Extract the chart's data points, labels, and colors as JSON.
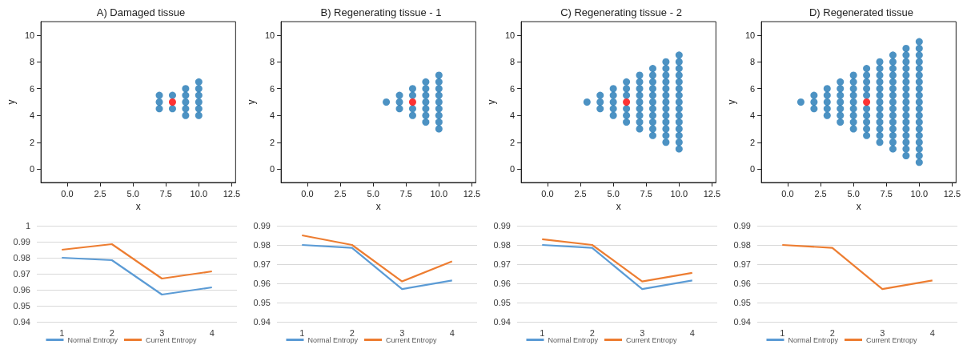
{
  "chart_data": [
    {
      "type": "scatter",
      "title": "A) Damaged tissue",
      "xlabel": "x",
      "ylabel": "y",
      "marker": "circle",
      "xlim": [
        -2,
        12.8
      ],
      "ylim": [
        -1,
        11
      ],
      "xticks": [
        {
          "value": 0,
          "label": "0.0"
        },
        2.5,
        {
          "value": 5,
          "label": "5.0"
        },
        7.5,
        {
          "value": 10,
          "label": "10.0"
        },
        12.5
      ],
      "yticks": [
        0,
        2,
        4,
        6,
        8,
        10
      ],
      "series": [
        {
          "color": "#1f77b4",
          "x": [
            7,
            7,
            7,
            8,
            8,
            9,
            9,
            9,
            9,
            9,
            10,
            10,
            10,
            10,
            10,
            10
          ],
          "values": [
            4.5,
            5,
            5.5,
            4.5,
            5.5,
            4,
            4.5,
            5,
            5.5,
            6,
            4,
            4.5,
            5,
            5.5,
            6,
            6.5
          ]
        },
        {
          "color": "#ff0000",
          "x": [
            8
          ],
          "values": [
            5
          ]
        }
      ]
    },
    {
      "type": "scatter",
      "title": "B) Regenerating tissue - 1",
      "xlabel": "x",
      "ylabel": "y",
      "marker": "circle",
      "xlim": [
        -2,
        12.8
      ],
      "ylim": [
        -1,
        11
      ],
      "xticks": [
        {
          "value": 0,
          "label": "0.0"
        },
        2.5,
        {
          "value": 5,
          "label": "5.0"
        },
        7.5,
        {
          "value": 10,
          "label": "10.0"
        },
        12.5
      ],
      "yticks": [
        0,
        2,
        4,
        6,
        8,
        10
      ],
      "series": [
        {
          "color": "#1f77b4",
          "x": [
            6,
            7,
            7,
            7,
            8,
            8,
            8,
            8,
            9,
            9,
            9,
            9,
            9,
            9,
            9,
            10,
            10,
            10,
            10,
            10,
            10,
            10,
            10,
            10
          ],
          "values": [
            5,
            4.5,
            5,
            5.5,
            4,
            4.5,
            5.5,
            6,
            3.5,
            4,
            4.5,
            5,
            5.5,
            6,
            6.5,
            3,
            3.5,
            4,
            4.5,
            5,
            5.5,
            6,
            6.5,
            7
          ]
        },
        {
          "color": "#ff0000",
          "x": [
            8
          ],
          "values": [
            5
          ]
        }
      ]
    },
    {
      "type": "scatter",
      "title": "C) Regenerating tissue - 2",
      "xlabel": "x",
      "ylabel": "y",
      "marker": "circle",
      "xlim": [
        -2,
        12.8
      ],
      "ylim": [
        -1,
        11
      ],
      "xticks": [
        {
          "value": 0,
          "label": "0.0"
        },
        2.5,
        {
          "value": 5,
          "label": "5.0"
        },
        7.5,
        {
          "value": 10,
          "label": "10.0"
        },
        12.5
      ],
      "yticks": [
        0,
        2,
        4,
        6,
        8,
        10
      ],
      "series": [
        {
          "color": "#1f77b4",
          "x": [
            3,
            4,
            4,
            4,
            5,
            5,
            5,
            5,
            5,
            6,
            6,
            6,
            6,
            6,
            6,
            7,
            7,
            7,
            7,
            7,
            7,
            7,
            7,
            7,
            8,
            8,
            8,
            8,
            8,
            8,
            8,
            8,
            8,
            8,
            8,
            9,
            9,
            9,
            9,
            9,
            9,
            9,
            9,
            9,
            9,
            9,
            9,
            9,
            10,
            10,
            10,
            10,
            10,
            10,
            10,
            10,
            10,
            10,
            10,
            10,
            10,
            10,
            10
          ],
          "values": [
            5,
            4.5,
            5,
            5.5,
            4,
            4.5,
            5,
            5.5,
            6,
            3.5,
            4,
            4.5,
            5.5,
            6,
            6.5,
            3,
            3.5,
            4,
            4.5,
            5,
            5.5,
            6,
            6.5,
            7,
            2.5,
            3,
            3.5,
            4,
            4.5,
            5,
            5.5,
            6,
            6.5,
            7,
            7.5,
            2,
            2.5,
            3,
            3.5,
            4,
            4.5,
            5,
            5.5,
            6,
            6.5,
            7,
            7.5,
            8,
            1.5,
            2,
            2.5,
            3,
            3.5,
            4,
            4.5,
            5,
            5.5,
            6,
            6.5,
            7,
            7.5,
            8,
            8.5
          ]
        },
        {
          "color": "#ff0000",
          "x": [
            6
          ],
          "values": [
            5
          ]
        }
      ]
    },
    {
      "type": "scatter",
      "title": "D) Regenerated tissue",
      "xlabel": "x",
      "ylabel": "y",
      "marker": "circle",
      "xlim": [
        -2,
        12.8
      ],
      "ylim": [
        -1,
        11
      ],
      "xticks": [
        {
          "value": 0,
          "label": "0.0"
        },
        2.5,
        {
          "value": 5,
          "label": "5.0"
        },
        7.5,
        {
          "value": 10,
          "label": "10.0"
        },
        12.5
      ],
      "yticks": [
        0,
        2,
        4,
        6,
        8,
        10
      ],
      "series": [
        {
          "color": "#1f77b4",
          "x": [
            1,
            2,
            2,
            2,
            3,
            3,
            3,
            3,
            3,
            4,
            4,
            4,
            4,
            4,
            4,
            4,
            5,
            5,
            5,
            5,
            5,
            5,
            5,
            5,
            5,
            6,
            6,
            6,
            6,
            6,
            6,
            6,
            6,
            6,
            6,
            7,
            7,
            7,
            7,
            7,
            7,
            7,
            7,
            7,
            7,
            7,
            7,
            7,
            8,
            8,
            8,
            8,
            8,
            8,
            8,
            8,
            8,
            8,
            8,
            8,
            8,
            8,
            8,
            9,
            9,
            9,
            9,
            9,
            9,
            9,
            9,
            9,
            9,
            9,
            9,
            9,
            9,
            9,
            9,
            9,
            10,
            10,
            10,
            10,
            10,
            10,
            10,
            10,
            10,
            10,
            10,
            10,
            10,
            10,
            10,
            10,
            10,
            10,
            10
          ],
          "values": [
            5,
            4.5,
            5,
            5.5,
            4,
            4.5,
            5,
            5.5,
            6,
            3.5,
            4,
            4.5,
            5,
            5.5,
            6,
            6.5,
            3,
            3.5,
            4,
            4.5,
            5,
            5.5,
            6,
            6.5,
            7,
            2.5,
            3,
            3.5,
            4,
            4.5,
            5.5,
            6,
            6.5,
            7,
            7.5,
            2,
            2.5,
            3,
            3.5,
            4,
            4.5,
            5,
            5.5,
            6,
            6.5,
            7,
            7.5,
            8,
            1.5,
            2,
            2.5,
            3,
            3.5,
            4,
            4.5,
            5,
            5.5,
            6,
            6.5,
            7,
            7.5,
            8,
            8.5,
            1,
            1.5,
            2,
            2.5,
            3,
            3.5,
            4,
            4.5,
            5,
            5.5,
            6,
            6.5,
            7,
            7.5,
            8,
            8.5,
            9,
            0.5,
            1,
            1.5,
            2,
            2.5,
            3,
            3.5,
            4,
            4.5,
            5,
            5.5,
            6,
            6.5,
            7,
            7.5,
            8,
            8.5,
            9,
            9.5
          ]
        },
        {
          "color": "#ff0000",
          "x": [
            6
          ],
          "values": [
            5
          ]
        }
      ]
    },
    {
      "type": "line",
      "categories": [
        "1",
        "2",
        "3",
        "4"
      ],
      "ylim": [
        0.94,
        1
      ],
      "yticks": [
        0.94,
        0.95,
        0.96,
        0.97,
        0.98,
        0.99,
        1
      ],
      "grid": "y",
      "legend": "bottom",
      "series": [
        {
          "name": "Normal Entropy",
          "color": "#5b9bd5",
          "values": [
            0.98,
            0.9785,
            0.957,
            0.9615
          ]
        },
        {
          "name": "Current Entropy",
          "color": "#ed7d31",
          "values": [
            0.985,
            0.9885,
            0.967,
            0.9715
          ]
        }
      ]
    },
    {
      "type": "line",
      "categories": [
        "1",
        "2",
        "3",
        "4"
      ],
      "ylim": [
        0.94,
        0.99
      ],
      "yticks": [
        0.94,
        0.95,
        0.96,
        0.97,
        0.98,
        0.99
      ],
      "grid": "y",
      "legend": "bottom",
      "series": [
        {
          "name": "Normal Entropy",
          "color": "#5b9bd5",
          "values": [
            0.98,
            0.9785,
            0.957,
            0.9615
          ]
        },
        {
          "name": "Current Entropy",
          "color": "#ed7d31",
          "values": [
            0.985,
            0.98,
            0.961,
            0.9715
          ]
        }
      ]
    },
    {
      "type": "line",
      "categories": [
        "1",
        "2",
        "3",
        "4"
      ],
      "ylim": [
        0.94,
        0.99
      ],
      "yticks": [
        0.94,
        0.95,
        0.96,
        0.97,
        0.98,
        0.99
      ],
      "grid": "y",
      "legend": "bottom",
      "series": [
        {
          "name": "Normal Entropy",
          "color": "#5b9bd5",
          "values": [
            0.98,
            0.9785,
            0.957,
            0.9615
          ]
        },
        {
          "name": "Current Entropy",
          "color": "#ed7d31",
          "values": [
            0.983,
            0.98,
            0.961,
            0.9655
          ]
        }
      ]
    },
    {
      "type": "line",
      "categories": [
        "1",
        "2",
        "3",
        "4"
      ],
      "ylim": [
        0.94,
        0.99
      ],
      "yticks": [
        0.94,
        0.95,
        0.96,
        0.97,
        0.98,
        0.99
      ],
      "grid": "y",
      "legend": "bottom",
      "series": [
        {
          "name": "Normal Entropy",
          "color": "#5b9bd5",
          "values": [
            null,
            null,
            null,
            null
          ]
        },
        {
          "name": "Current Entropy",
          "color": "#ed7d31",
          "values": [
            0.98,
            0.9785,
            0.957,
            0.9615
          ]
        }
      ]
    }
  ]
}
